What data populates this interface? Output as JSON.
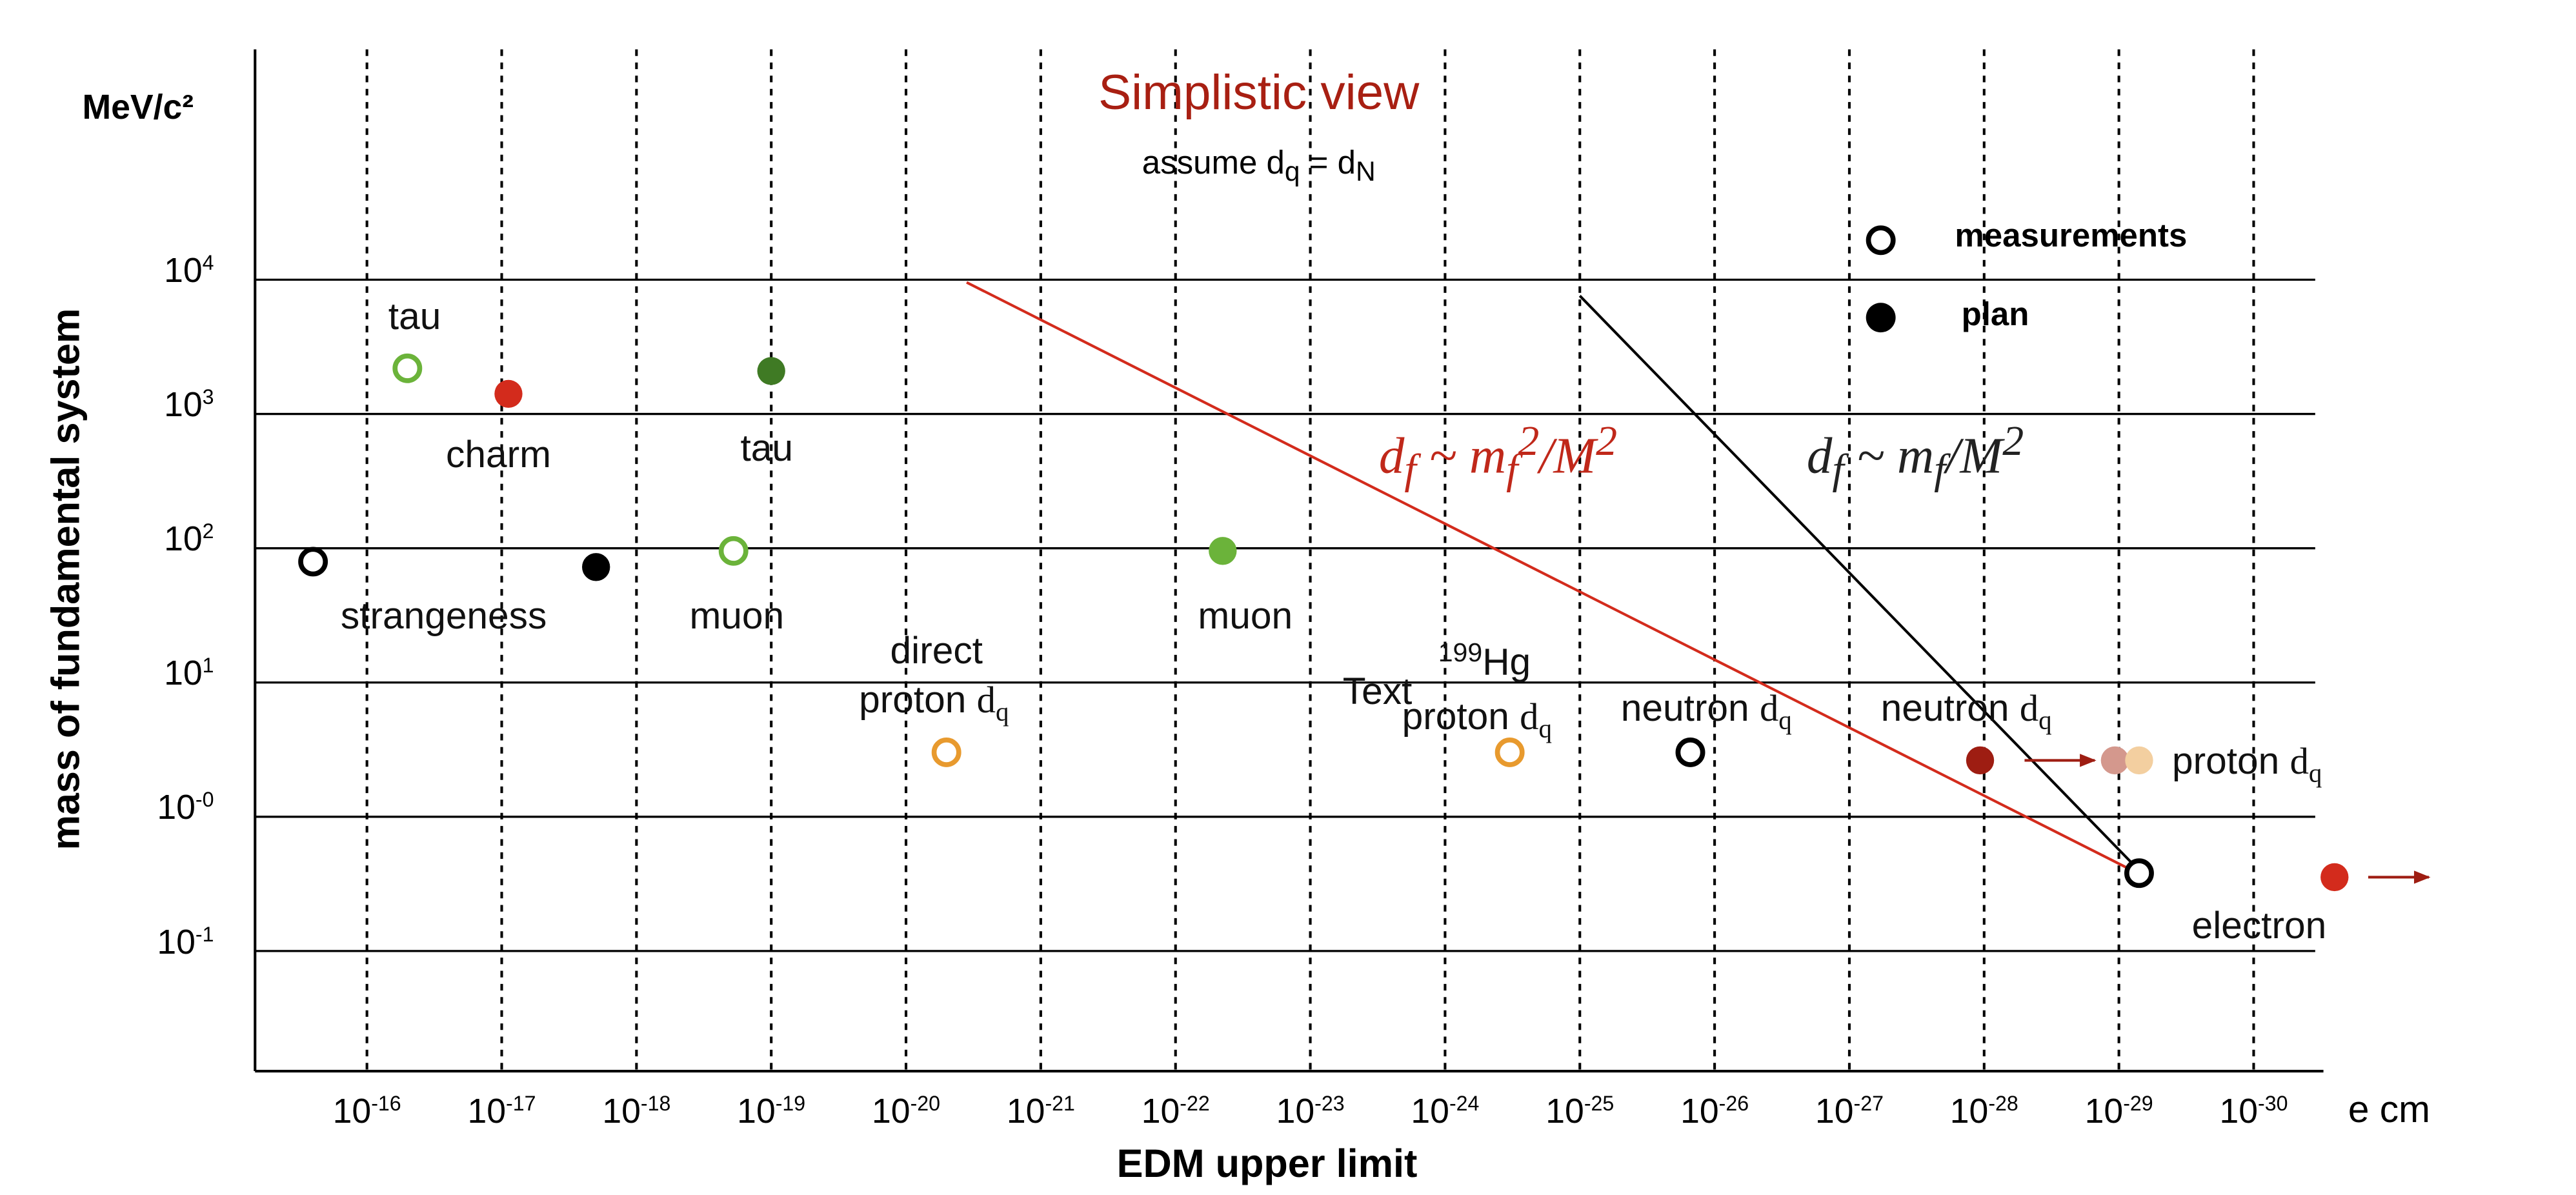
{
  "chart_data": {
    "type": "scatter",
    "title": "Simplistic view",
    "subtitle": "assume d<sub>q</sub> = d<sub>N</sub>",
    "subtitle_text": "assume dq = dN",
    "xlabel": "EDM upper limit",
    "ylabel": "mass of fundamental system",
    "y_unit": "MeV/c²",
    "x_unit": "e cm",
    "x_axis_log": true,
    "y_axis_log": true,
    "x_ticks": [
      {
        "exp": -16,
        "label_base": "10",
        "label_exp": "-16"
      },
      {
        "exp": -17,
        "label_base": "10",
        "label_exp": "-17"
      },
      {
        "exp": -18,
        "label_base": "10",
        "label_exp": "-18"
      },
      {
        "exp": -19,
        "label_base": "10",
        "label_exp": "-19"
      },
      {
        "exp": -20,
        "label_base": "10",
        "label_exp": "-20"
      },
      {
        "exp": -21,
        "label_base": "10",
        "label_exp": "-21"
      },
      {
        "exp": -22,
        "label_base": "10",
        "label_exp": "-22"
      },
      {
        "exp": -23,
        "label_base": "10",
        "label_exp": "-23"
      },
      {
        "exp": -24,
        "label_base": "10",
        "label_exp": "-24"
      },
      {
        "exp": -25,
        "label_base": "10",
        "label_exp": "-25"
      },
      {
        "exp": -26,
        "label_base": "10",
        "label_exp": "-26"
      },
      {
        "exp": -27,
        "label_base": "10",
        "label_exp": "-27"
      },
      {
        "exp": -28,
        "label_base": "10",
        "label_exp": "-28"
      },
      {
        "exp": -29,
        "label_base": "10",
        "label_exp": "-29"
      },
      {
        "exp": -30,
        "label_base": "10",
        "label_exp": "-30"
      }
    ],
    "y_ticks": [
      {
        "exp": 4,
        "label_base": "10",
        "label_exp": "4"
      },
      {
        "exp": 3,
        "label_base": "10",
        "label_exp": "3"
      },
      {
        "exp": 2,
        "label_base": "10",
        "label_exp": "2"
      },
      {
        "exp": 1,
        "label_base": "10",
        "label_exp": "1"
      },
      {
        "exp": 0,
        "label_base": "10",
        "label_exp": "-0"
      },
      {
        "exp": -1,
        "label_base": "10",
        "label_exp": "-1"
      }
    ],
    "legend": {
      "position": "top-right",
      "items": [
        {
          "label": "measurements",
          "marker": "open",
          "color": "#000000"
        },
        {
          "label": "plan",
          "marker": "filled",
          "color": "#000000"
        }
      ]
    },
    "points": [
      {
        "id": "strangeness-meas",
        "x_exp": -15.6,
        "y_exp": 1.9,
        "marker": "open",
        "color": "#000000"
      },
      {
        "id": "strangeness-plan",
        "x_exp": -17.7,
        "y_exp": 1.86,
        "marker": "filled",
        "color": "#000000"
      },
      {
        "id": "tau-meas",
        "x_exp": -16.3,
        "y_exp": 3.34,
        "marker": "open",
        "color": "#6bb33a"
      },
      {
        "id": "charm-plan",
        "x_exp": -17.05,
        "y_exp": 3.15,
        "marker": "filled",
        "color": "#d32b1c"
      },
      {
        "id": "tau-plan",
        "x_exp": -19.0,
        "y_exp": 3.32,
        "marker": "filled",
        "color": "#3f7a24"
      },
      {
        "id": "muon-meas",
        "x_exp": -18.72,
        "y_exp": 1.98,
        "marker": "open",
        "color": "#6bb33a"
      },
      {
        "id": "muon-plan",
        "x_exp": -22.35,
        "y_exp": 1.98,
        "marker": "filled",
        "color": "#6bb33a"
      },
      {
        "id": "proton-direct-meas",
        "x_exp": -20.3,
        "y_exp": 0.48,
        "marker": "open",
        "color": "#e89a2e"
      },
      {
        "id": "proton-hg-meas",
        "x_exp": -24.48,
        "y_exp": 0.48,
        "marker": "open",
        "color": "#e89a2e"
      },
      {
        "id": "neutron-meas",
        "x_exp": -25.82,
        "y_exp": 0.48,
        "marker": "open",
        "color": "#000000"
      },
      {
        "id": "neutron-plan",
        "x_exp": -27.97,
        "y_exp": 0.42,
        "marker": "filled",
        "color": "#9e1d12"
      },
      {
        "id": "neutron-plan-future",
        "x_exp": -28.97,
        "y_exp": 0.42,
        "marker": "filled",
        "color": "#d4988d"
      },
      {
        "id": "proton-plan",
        "x_exp": -29.15,
        "y_exp": 0.42,
        "marker": "filled",
        "color": "#f3cfa0"
      },
      {
        "id": "electron-meas",
        "x_exp": -29.15,
        "y_exp": -0.42,
        "marker": "open",
        "color": "#000000"
      },
      {
        "id": "electron-plan",
        "x_exp": -30.6,
        "y_exp": -0.45,
        "marker": "filled",
        "color": "#d32b1c"
      }
    ],
    "arrows": [
      {
        "id": "neutron-arrow",
        "from_x_exp": -28.3,
        "to_x_exp": -28.82,
        "y_exp": 0.42,
        "color": "#9e1d12"
      },
      {
        "id": "electron-arrow",
        "from_x_exp": -30.85,
        "to_x_exp": -31.3,
        "y_exp": -0.45,
        "color": "#9e1d12"
      }
    ],
    "lines": [
      {
        "id": "quadratic-scaling-line",
        "color": "#d32b1c",
        "from": {
          "x_exp": -20.45,
          "y_exp": 3.98
        },
        "to": {
          "x_exp": -29.1,
          "y_exp": -0.4
        }
      },
      {
        "id": "linear-scaling-line",
        "color": "#000000",
        "from": {
          "x_exp": -25.0,
          "y_exp": 3.88
        },
        "to": {
          "x_exp": -29.15,
          "y_exp": -0.4
        }
      }
    ],
    "formulas": [
      {
        "id": "formula-quadratic",
        "html": "d<sub>f</sub> ~ m<sub>f</sub><sup>2</sup>/M<sup>2</sup>",
        "color": "#c0281a"
      },
      {
        "id": "formula-linear",
        "html": "d<sub>f</sub> ~ m<sub>f</sub>/M<sup>2</sup>",
        "color": "#222222"
      }
    ],
    "annotations": [
      {
        "id": "label-tau-left",
        "text": "tau"
      },
      {
        "id": "label-charm",
        "text": "charm"
      },
      {
        "id": "label-tau-right",
        "text": "tau"
      },
      {
        "id": "label-strangeness",
        "text": "strangeness"
      },
      {
        "id": "label-muon-left",
        "text": "muon"
      },
      {
        "id": "label-muon-right",
        "text": "muon"
      },
      {
        "id": "label-direct",
        "text": "direct"
      },
      {
        "id": "label-proton-direct",
        "text": "proton",
        "sub_serif": "d",
        "sub_q": "q"
      },
      {
        "id": "label-text",
        "text": "Text"
      },
      {
        "id": "label-hg",
        "text": "Hg",
        "sup": "199"
      },
      {
        "id": "label-proton-hg",
        "text": "proton",
        "sub_serif": "d",
        "sub_q": "q"
      },
      {
        "id": "label-neutron-meas",
        "text": "neutron",
        "sub_serif": "d",
        "sub_q": "q"
      },
      {
        "id": "label-neutron-plan",
        "text": "neutron",
        "sub_serif": "d",
        "sub_q": "q"
      },
      {
        "id": "label-proton-plan",
        "text": "proton",
        "sub_serif": "d",
        "sub_q": "q"
      },
      {
        "id": "label-electron",
        "text": "electron"
      }
    ],
    "grid": {
      "x": "dashed",
      "y": "solid"
    }
  }
}
